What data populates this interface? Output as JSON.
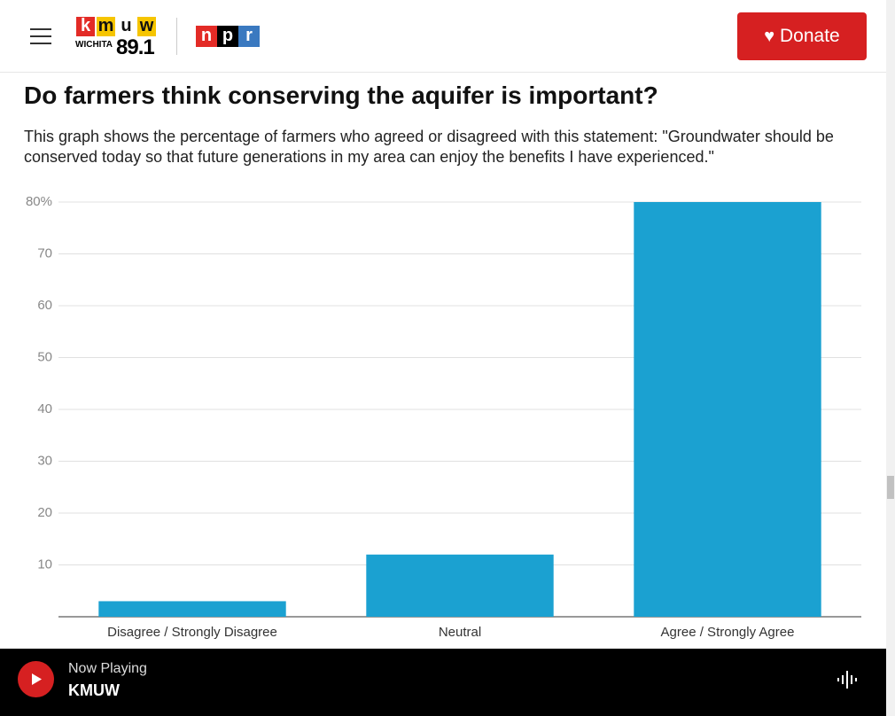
{
  "header": {
    "station_letters": [
      "k",
      "m",
      "u",
      "w"
    ],
    "station_city": "WICHITA",
    "station_freq": "89.1",
    "npr_letters": [
      "n",
      "p",
      "r"
    ],
    "donate": "Donate"
  },
  "chart_data": {
    "type": "bar",
    "title": "Do farmers think conserving the aquifer is important?",
    "subtitle": "This graph shows the percentage of farmers who agreed or disagreed with this statement: \"Groundwater should be conserved today so that future generations in my area can enjoy the benefits I have experienced.\"",
    "categories": [
      "Disagree / Strongly Disagree",
      "Neutral",
      "Agree / Strongly Agree"
    ],
    "values": [
      3,
      12,
      80
    ],
    "color": "#1ba1d1",
    "ylim": [
      0,
      80
    ],
    "yticks": [
      10,
      20,
      30,
      40,
      50,
      60,
      70,
      {
        "value": 80,
        "label": "80%"
      }
    ],
    "grid": true
  },
  "player": {
    "status": "Now Playing",
    "station": "KMUW"
  }
}
